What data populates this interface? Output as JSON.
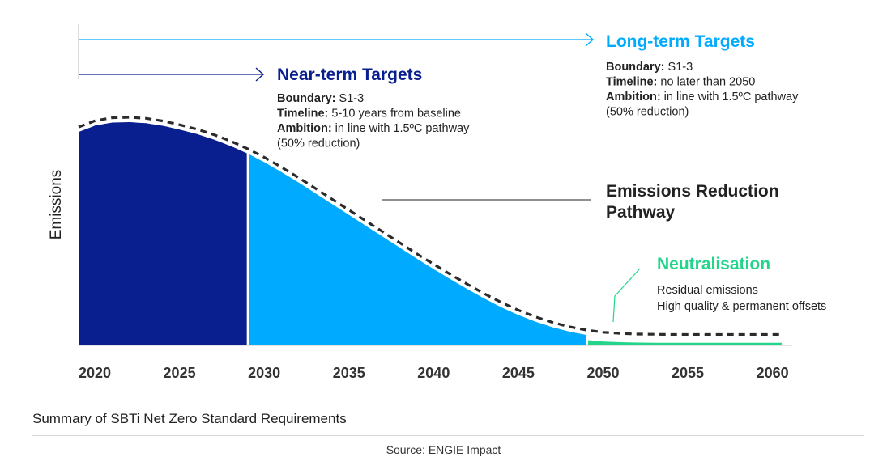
{
  "chart_data": {
    "type": "area",
    "x_ticks": [
      "2020",
      "2025",
      "2030",
      "2035",
      "2040",
      "2045",
      "2050",
      "2055",
      "2060"
    ],
    "xlim": [
      2020,
      2061.5
    ],
    "ylabel": "Emissions",
    "pathway_label": [
      "Emissions Reduction",
      "Pathway"
    ],
    "pathway": [
      [
        2020,
        100
      ],
      [
        2021,
        103
      ],
      [
        2022,
        104.3
      ],
      [
        2023,
        104.5
      ],
      [
        2024,
        104
      ],
      [
        2025,
        102.8
      ],
      [
        2026,
        101
      ],
      [
        2027,
        99
      ],
      [
        2028,
        96.5
      ],
      [
        2029,
        93.5
      ],
      [
        2030,
        90
      ],
      [
        2031,
        86
      ],
      [
        2032,
        81.5
      ],
      [
        2033,
        76.8
      ],
      [
        2034,
        71.8
      ],
      [
        2035,
        66.8
      ],
      [
        2036,
        61.8
      ],
      [
        2037,
        56.8
      ],
      [
        2038,
        51.8
      ],
      [
        2039,
        46.8
      ],
      [
        2040,
        41.8
      ],
      [
        2041,
        37
      ],
      [
        2042,
        32.3
      ],
      [
        2043,
        27.8
      ],
      [
        2044,
        23.5
      ],
      [
        2045,
        19.5
      ],
      [
        2046,
        16
      ],
      [
        2047,
        13
      ],
      [
        2048,
        10.5
      ],
      [
        2049,
        8.5
      ],
      [
        2050,
        7
      ],
      [
        2051,
        6
      ],
      [
        2052,
        5.5
      ],
      [
        2053,
        5.2
      ],
      [
        2054,
        5.1
      ],
      [
        2055,
        5
      ],
      [
        2056,
        5
      ],
      [
        2057,
        5
      ],
      [
        2058,
        5
      ],
      [
        2059,
        5
      ],
      [
        2060,
        5
      ],
      [
        2061.5,
        5
      ]
    ],
    "phases": [
      {
        "name": "near-term",
        "start": 2020,
        "end": 2030,
        "color": "#0a1f8f"
      },
      {
        "name": "long-term",
        "start": 2030,
        "end": 2050,
        "color": "#00aaff"
      },
      {
        "name": "neutralisation",
        "start": 2050,
        "end": 2061.5,
        "color": "#23d58a"
      }
    ],
    "annotations": {
      "near_term": {
        "title": "Near-term Targets",
        "title_color": "#0a1f8f",
        "lines": [
          {
            "k": "Boundary:",
            "v": " S1-3"
          },
          {
            "k": "Timeline:",
            "v": " 5-10 years from baseline"
          },
          {
            "k": "Ambition:",
            "v": " in line with 1.5ºC pathway"
          },
          {
            "k": "",
            "v": "(50% reduction)"
          }
        ]
      },
      "long_term": {
        "title": "Long-term Targets",
        "title_color": "#00aaff",
        "lines": [
          {
            "k": "Boundary:",
            "v": " S1-3"
          },
          {
            "k": "Timeline:",
            "v": " no later than 2050"
          },
          {
            "k": "Ambition:",
            "v": " in line with 1.5ºC pathway"
          },
          {
            "k": "",
            "v": "(50% reduction)"
          }
        ]
      },
      "neutralisation": {
        "title": "Neutralisation",
        "title_color": "#23d58a",
        "lines": [
          "Residual emissions",
          "High quality & permanent offsets"
        ]
      }
    }
  },
  "caption": "Summary of SBTi Net Zero Standard Requirements",
  "source": "Source: ENGIE Impact"
}
